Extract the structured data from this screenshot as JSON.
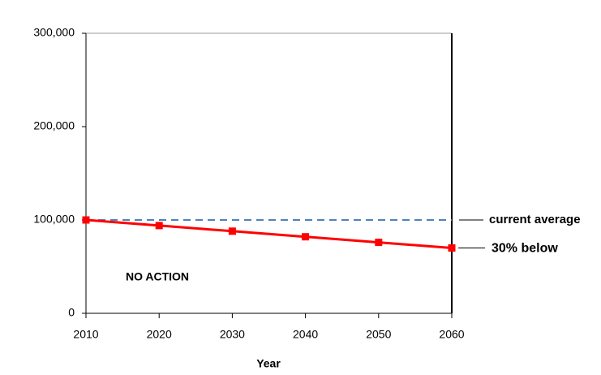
{
  "chart_data": {
    "type": "line",
    "x_label": "Year",
    "x": [
      2010,
      2020,
      2030,
      2040,
      2050,
      2060
    ],
    "xlim": [
      2010,
      2060
    ],
    "xticks": [
      2010,
      2020,
      2030,
      2040,
      2050,
      2060
    ],
    "ylim": [
      0,
      300000
    ],
    "yticks": [
      0,
      {
        "value": 100000,
        "label": "100,000"
      },
      {
        "value": 200000,
        "label": "200,000"
      },
      {
        "value": 300000,
        "label": "300,000"
      }
    ],
    "grid": false,
    "series": [
      {
        "color": "#ff0000",
        "values": [
          100000,
          94000,
          88000,
          82000,
          76000,
          70000
        ]
      }
    ],
    "reference_line": {
      "value": 100000,
      "label": "current average",
      "color": "#4f81bd",
      "dashed": true
    },
    "annotations": [
      "30% below",
      "NO ACTION"
    ]
  }
}
